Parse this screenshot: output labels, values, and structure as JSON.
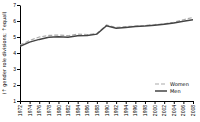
{
  "chart_data": {
    "type": "line",
    "y_label": "(↑ gender role divisions; ↑equal)",
    "x": [
      1972,
      1974,
      1976,
      1978,
      1980,
      1982,
      1984,
      1986,
      1988,
      1990,
      1992,
      1994,
      1996,
      1998,
      2000,
      2002,
      2004,
      2006,
      2008
    ],
    "series": [
      {
        "name": "Women",
        "color": "#aaaaaa",
        "line_style": "dashed",
        "values": [
          4.5,
          4.78,
          5.0,
          5.1,
          5.12,
          5.08,
          5.18,
          5.15,
          5.22,
          5.75,
          5.6,
          5.65,
          5.68,
          5.72,
          5.78,
          5.82,
          5.92,
          6.08,
          6.22
        ]
      },
      {
        "name": "Men",
        "color": "#444444",
        "line_style": "solid",
        "values": [
          4.42,
          4.68,
          4.85,
          4.98,
          5.02,
          4.98,
          5.08,
          5.1,
          5.18,
          5.7,
          5.55,
          5.6,
          5.65,
          5.68,
          5.73,
          5.8,
          5.88,
          5.98,
          6.08
        ]
      }
    ],
    "xlim": [
      1972,
      2008
    ],
    "xticks": [
      1972,
      1974,
      1976,
      1978,
      1980,
      1982,
      1984,
      1986,
      1988,
      1990,
      1992,
      1994,
      1996,
      1998,
      2000,
      2002,
      2004,
      2006,
      2008
    ],
    "ylim": [
      1,
      7
    ],
    "yticks": [
      1,
      2,
      3,
      4,
      5,
      6,
      7
    ],
    "grid": false,
    "legend": "lower right"
  }
}
